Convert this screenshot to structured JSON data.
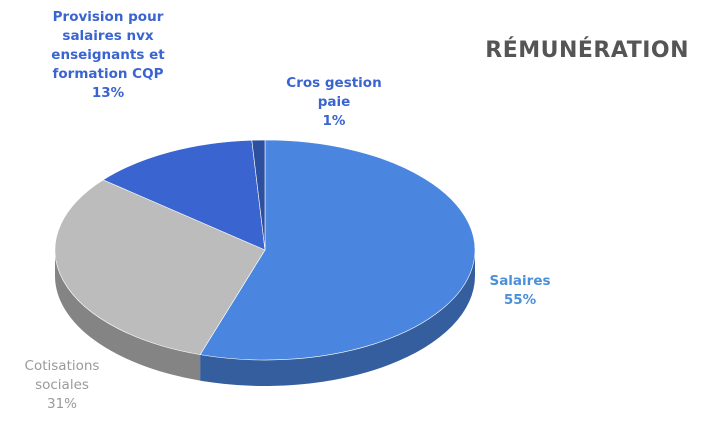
{
  "chart_data": {
    "type": "pie",
    "title": "RÉMUNÉRATION",
    "categories": [
      "Salaires",
      "Cotisations sociales",
      "Provision pour salaires nvx enseignants et formation CQP",
      "Cros gestion paie"
    ],
    "values": [
      55,
      31,
      13,
      1
    ],
    "value_labels": [
      "55%",
      "31%",
      "13%",
      "1%"
    ],
    "colors": [
      "#4a86e0",
      "#bcbcbc",
      "#3a64d0",
      "#2c4f9e"
    ]
  }
}
